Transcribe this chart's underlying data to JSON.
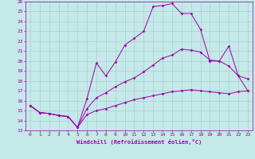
{
  "xlabel": "Windchill (Refroidissement éolien,°C)",
  "xlim": [
    -0.5,
    23.5
  ],
  "ylim": [
    13,
    26
  ],
  "xticks": [
    0,
    1,
    2,
    3,
    4,
    5,
    6,
    7,
    8,
    9,
    10,
    11,
    12,
    13,
    14,
    15,
    16,
    17,
    18,
    19,
    20,
    21,
    22,
    23
  ],
  "yticks": [
    13,
    14,
    15,
    16,
    17,
    18,
    19,
    20,
    21,
    22,
    23,
    24,
    25,
    26
  ],
  "bg_color": "#c5e8e8",
  "grid_color": "#a8d0d0",
  "line_color": "#9900aa",
  "lines": [
    {
      "x": [
        0,
        1,
        2,
        3,
        4,
        5,
        6,
        7,
        8,
        9,
        10,
        11,
        12,
        13,
        14,
        15,
        16,
        17,
        18,
        19,
        20,
        21,
        22,
        23
      ],
      "y": [
        15.5,
        14.8,
        14.7,
        14.5,
        14.4,
        13.3,
        16.2,
        19.8,
        18.5,
        19.9,
        21.6,
        22.3,
        23.0,
        25.5,
        25.6,
        25.8,
        24.8,
        24.8,
        23.2,
        20.0,
        20.0,
        21.5,
        18.5,
        17.0
      ]
    },
    {
      "x": [
        0,
        1,
        2,
        3,
        4,
        5,
        6,
        7,
        8,
        9,
        10,
        11,
        12,
        13,
        14,
        15,
        16,
        17,
        18,
        19,
        20,
        21,
        22,
        23
      ],
      "y": [
        15.5,
        14.8,
        14.7,
        14.5,
        14.4,
        13.3,
        15.2,
        16.3,
        16.8,
        17.4,
        17.9,
        18.3,
        18.9,
        19.6,
        20.3,
        20.6,
        21.2,
        21.1,
        20.9,
        20.1,
        20.0,
        19.5,
        18.5,
        18.2
      ]
    },
    {
      "x": [
        0,
        1,
        2,
        3,
        4,
        5,
        6,
        7,
        8,
        9,
        10,
        11,
        12,
        13,
        14,
        15,
        16,
        17,
        18,
        19,
        20,
        21,
        22,
        23
      ],
      "y": [
        15.5,
        14.8,
        14.7,
        14.5,
        14.4,
        13.3,
        14.6,
        15.0,
        15.2,
        15.5,
        15.8,
        16.1,
        16.3,
        16.5,
        16.7,
        16.9,
        17.0,
        17.1,
        17.0,
        16.9,
        16.8,
        16.7,
        16.9,
        17.0
      ]
    }
  ]
}
